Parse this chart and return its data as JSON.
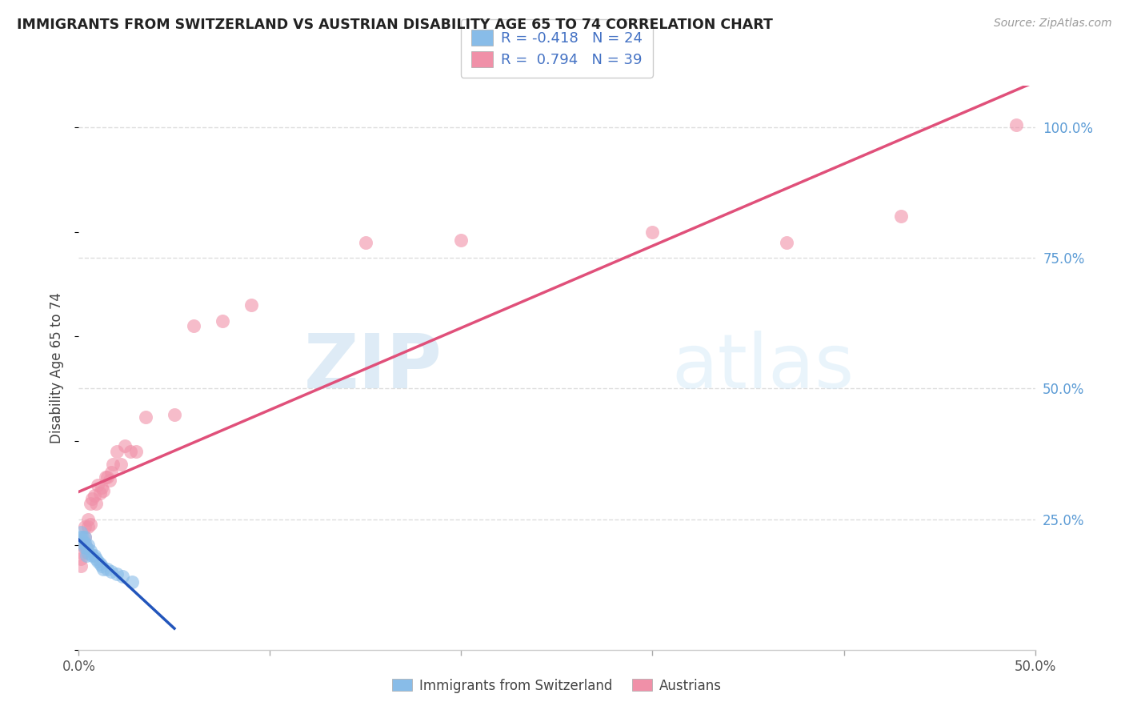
{
  "title": "IMMIGRANTS FROM SWITZERLAND VS AUSTRIAN DISABILITY AGE 65 TO 74 CORRELATION CHART",
  "source": "Source: ZipAtlas.com",
  "ylabel": "Disability Age 65 to 74",
  "xlim": [
    0.0,
    0.5
  ],
  "ylim": [
    0.0,
    1.08
  ],
  "xtick_positions": [
    0.0,
    0.1,
    0.2,
    0.3,
    0.4,
    0.5
  ],
  "xtick_labels": [
    "0.0%",
    "",
    "",
    "",
    "",
    "50.0%"
  ],
  "yticks_right": [
    0.25,
    0.5,
    0.75,
    1.0
  ],
  "ytick_labels_right": [
    "25.0%",
    "50.0%",
    "75.0%",
    "100.0%"
  ],
  "watermark_zip": "ZIP",
  "watermark_atlas": "atlas",
  "legend_r_swiss": "R = -0.418",
  "legend_n_swiss": "N = 24",
  "legend_r_austrian": "R =  0.794",
  "legend_n_austrian": "N = 39",
  "legend_label_swiss": "Immigrants from Switzerland",
  "legend_label_austrians": "Austrians",
  "swiss_color": "#88bce8",
  "austrian_color": "#f090a8",
  "swiss_line_color": "#2255bb",
  "austrian_line_color": "#e0507a",
  "grid_color": "#dddddd",
  "swiss_x": [
    0.001,
    0.001,
    0.002,
    0.002,
    0.003,
    0.003,
    0.003,
    0.004,
    0.004,
    0.005,
    0.005,
    0.006,
    0.007,
    0.008,
    0.009,
    0.01,
    0.011,
    0.012,
    0.013,
    0.015,
    0.017,
    0.02,
    0.023,
    0.028
  ],
  "swiss_y": [
    0.215,
    0.225,
    0.205,
    0.215,
    0.195,
    0.205,
    0.215,
    0.18,
    0.195,
    0.185,
    0.2,
    0.19,
    0.18,
    0.18,
    0.175,
    0.17,
    0.165,
    0.16,
    0.155,
    0.155,
    0.15,
    0.145,
    0.14,
    0.13
  ],
  "austrian_x": [
    0.001,
    0.001,
    0.002,
    0.002,
    0.003,
    0.003,
    0.004,
    0.005,
    0.005,
    0.006,
    0.006,
    0.007,
    0.008,
    0.009,
    0.01,
    0.011,
    0.012,
    0.013,
    0.014,
    0.015,
    0.016,
    0.017,
    0.018,
    0.02,
    0.022,
    0.024,
    0.027,
    0.03,
    0.035,
    0.05,
    0.06,
    0.075,
    0.09,
    0.15,
    0.2,
    0.3,
    0.37,
    0.43,
    0.49
  ],
  "austrian_y": [
    0.16,
    0.175,
    0.185,
    0.2,
    0.215,
    0.235,
    0.195,
    0.235,
    0.25,
    0.24,
    0.28,
    0.29,
    0.295,
    0.28,
    0.315,
    0.3,
    0.31,
    0.305,
    0.33,
    0.33,
    0.325,
    0.34,
    0.355,
    0.38,
    0.355,
    0.39,
    0.38,
    0.38,
    0.445,
    0.45,
    0.62,
    0.63,
    0.66,
    0.78,
    0.785,
    0.8,
    0.78,
    0.83,
    1.005
  ],
  "swiss_line_x0": 0.0,
  "swiss_line_x1": 0.05,
  "austrian_line_x0": 0.0,
  "austrian_line_x1": 0.5
}
